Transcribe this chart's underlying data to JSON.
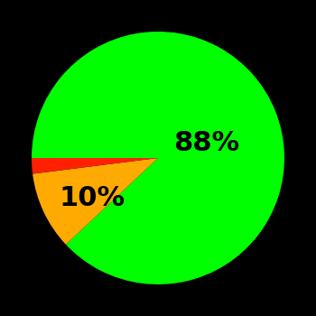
{
  "slices": [
    88,
    10,
    2
  ],
  "colors": [
    "#00ff00",
    "#ffaa00",
    "#ff2000"
  ],
  "labels": [
    "88%",
    "10%",
    ""
  ],
  "background_color": "#000000",
  "startangle": 180,
  "label_fontsize": 22,
  "label_fontweight": "bold",
  "figsize": [
    3.5,
    3.5
  ],
  "dpi": 100
}
